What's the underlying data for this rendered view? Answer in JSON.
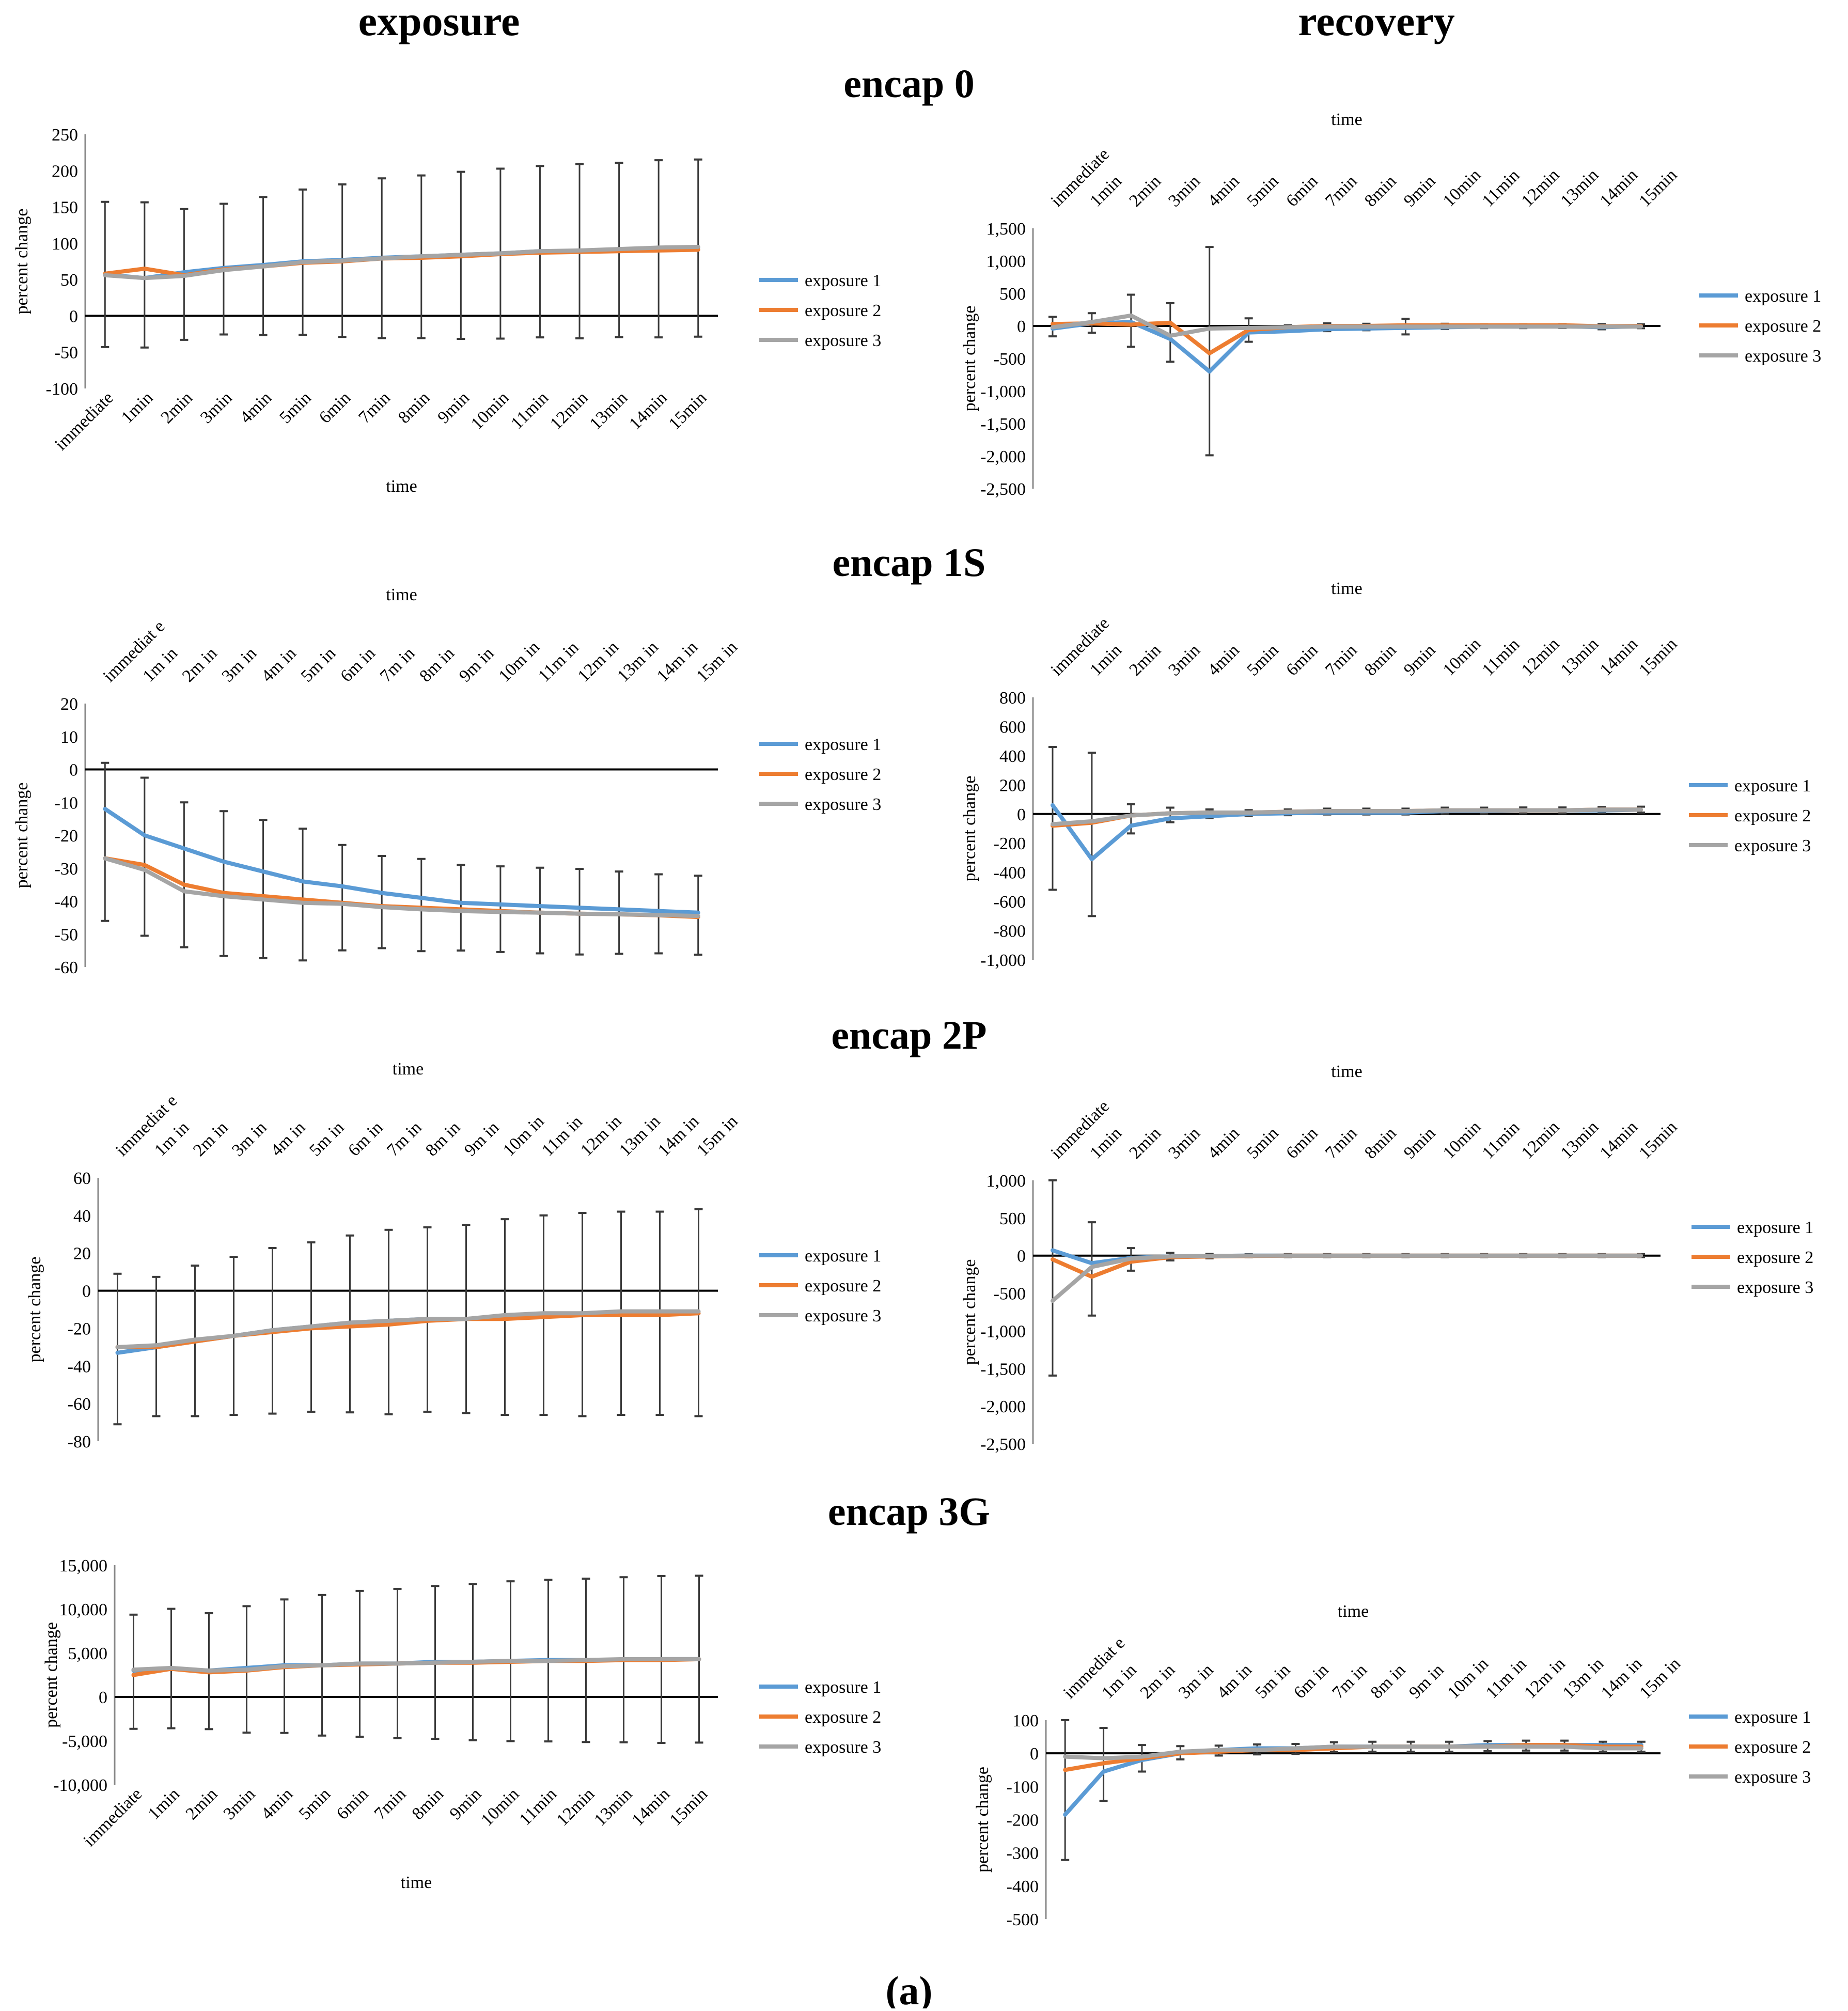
{
  "figure": {
    "column_titles": [
      "exposure",
      "recovery"
    ],
    "caption": "(a)",
    "colors": {
      "exposure 1": "#5b9bd5",
      "exposure 2": "#ed7d31",
      "exposure 3": "#a5a5a5",
      "errorbar": "#3a3a3a"
    }
  },
  "chart_data": [
    {
      "group": "encap 0",
      "panel": "exposure",
      "type": "line",
      "title": "encap 0",
      "xlabel": "time",
      "ylabel": "percent change",
      "xaxis_position": "bottom",
      "categories": [
        "immediate",
        "1min",
        "2min",
        "3min",
        "4min",
        "5min",
        "6min",
        "7min",
        "8min",
        "9min",
        "10min",
        "11min",
        "12min",
        "13min",
        "14min",
        "15min"
      ],
      "ylim": [
        -100,
        250
      ],
      "yticks": [
        "-100",
        "-50",
        "0",
        "50",
        "100",
        "150",
        "200",
        "250"
      ],
      "yticks_values": [
        -100,
        -50,
        0,
        50,
        100,
        150,
        200,
        250
      ],
      "legend": "right",
      "grid": false,
      "series": [
        {
          "name": "exposure 1",
          "values": [
            57,
            52,
            60,
            66,
            70,
            75,
            77,
            80,
            82,
            84,
            86,
            89,
            89,
            91,
            93,
            94
          ]
        },
        {
          "name": "exposure 2",
          "values": [
            58,
            65,
            56,
            64,
            68,
            73,
            75,
            79,
            80,
            82,
            85,
            87,
            88,
            89,
            90,
            91
          ]
        },
        {
          "name": "exposure 3",
          "values": [
            56,
            52,
            55,
            63,
            68,
            74,
            76,
            79,
            82,
            84,
            86,
            89,
            90,
            92,
            94,
            95
          ]
        }
      ],
      "error": [
        100,
        100,
        90,
        90,
        95,
        100,
        105,
        110,
        112,
        115,
        117,
        118,
        120,
        120,
        122,
        122
      ]
    },
    {
      "group": "encap 0",
      "panel": "recovery",
      "type": "line",
      "title": "",
      "xlabel": "time",
      "ylabel": "percent change",
      "xaxis_position": "top",
      "categories": [
        "immediate",
        "1min",
        "2min",
        "3min",
        "4min",
        "5min",
        "6min",
        "7min",
        "8min",
        "9min",
        "10min",
        "11min",
        "12min",
        "13min",
        "14min",
        "15min"
      ],
      "ylim": [
        -2500,
        1500
      ],
      "yticks": [
        "-2,500",
        "-2,000",
        "-1,500",
        "-1,000",
        "-500",
        "0",
        "500",
        "1,000",
        "1,500"
      ],
      "yticks_values": [
        -2500,
        -2000,
        -1500,
        -1000,
        -500,
        0,
        500,
        1000,
        1500
      ],
      "legend": "right",
      "grid": false,
      "series": [
        {
          "name": "exposure 1",
          "values": [
            -40,
            40,
            60,
            -200,
            -700,
            -100,
            -80,
            -50,
            -40,
            -30,
            -20,
            -10,
            -10,
            -5,
            -20,
            -5
          ]
        },
        {
          "name": "exposure 2",
          "values": [
            30,
            40,
            20,
            50,
            -420,
            -60,
            -20,
            0,
            0,
            10,
            10,
            10,
            10,
            10,
            -5,
            0
          ]
        },
        {
          "name": "exposure 3",
          "values": [
            -20,
            60,
            160,
            -150,
            -40,
            -30,
            -20,
            -10,
            -10,
            -10,
            -10,
            -10,
            -10,
            -10,
            -10,
            -10
          ]
        }
      ],
      "error": [
        150,
        150,
        400,
        450,
        1600,
        180,
        50,
        60,
        50,
        120,
        40,
        30,
        30,
        30,
        40,
        30
      ]
    },
    {
      "group": "encap 1S",
      "panel": "exposure",
      "type": "line",
      "title": "encap 1S",
      "xlabel": "time",
      "ylabel": "percent change",
      "xaxis_position": "top",
      "categories": [
        "immediat e",
        "1m in",
        "2m in",
        "3m in",
        "4m in",
        "5m in",
        "6m in",
        "7m in",
        "8m in",
        "9m in",
        "10m in",
        "11m in",
        "12m in",
        "13m in",
        "14m in",
        "15m in"
      ],
      "ylim": [
        -60,
        20
      ],
      "yticks": [
        "-60",
        "-50",
        "-40",
        "-30",
        "-20",
        "-10",
        "0",
        "10",
        "20"
      ],
      "yticks_values": [
        -60,
        -50,
        -40,
        -30,
        -20,
        -10,
        0,
        10,
        20
      ],
      "legend": "right",
      "grid": false,
      "series": [
        {
          "name": "exposure 1",
          "values": [
            -12,
            -20,
            -24,
            -28,
            -31,
            -34,
            -35.5,
            -37.5,
            -39,
            -40.5,
            -41,
            -41.5,
            -42,
            -42.5,
            -43,
            -43.5
          ]
        },
        {
          "name": "exposure 2",
          "values": [
            -27,
            -29,
            -35,
            -37.5,
            -38.5,
            -39.5,
            -40.5,
            -41.5,
            -42,
            -42.5,
            -43,
            -43.5,
            -43.8,
            -44,
            -44.3,
            -44.8
          ]
        },
        {
          "name": "exposure 3",
          "values": [
            -27,
            -30.5,
            -37,
            -38.5,
            -39.5,
            -40.5,
            -40.8,
            -41.8,
            -42.5,
            -43,
            -43.3,
            -43.5,
            -43.8,
            -44,
            -44.2,
            -44.5
          ]
        }
      ],
      "error": [
        24,
        24,
        22,
        22,
        21,
        20,
        16,
        14,
        14,
        13,
        13,
        13,
        13,
        12.5,
        12,
        12
      ]
    },
    {
      "group": "encap 1S",
      "panel": "recovery",
      "type": "line",
      "title": "",
      "xlabel": "time",
      "ylabel": "percent change",
      "xaxis_position": "top",
      "categories": [
        "immediate",
        "1min",
        "2min",
        "3min",
        "4min",
        "5min",
        "6min",
        "7min",
        "8min",
        "9min",
        "10min",
        "11min",
        "12min",
        "13min",
        "14min",
        "15min"
      ],
      "ylim": [
        -1000,
        800
      ],
      "yticks": [
        "-1,000",
        "-800",
        "-600",
        "-400",
        "-200",
        "0",
        "200",
        "400",
        "600",
        "800"
      ],
      "yticks_values": [
        -1000,
        -800,
        -600,
        -400,
        -200,
        0,
        200,
        400,
        600,
        800
      ],
      "legend": "right",
      "grid": false,
      "series": [
        {
          "name": "exposure 1",
          "values": [
            60,
            -310,
            -80,
            -30,
            -15,
            0,
            5,
            10,
            10,
            10,
            20,
            20,
            25,
            25,
            25,
            30
          ]
        },
        {
          "name": "exposure 2",
          "values": [
            -80,
            -60,
            -10,
            5,
            10,
            10,
            15,
            20,
            20,
            20,
            25,
            25,
            25,
            25,
            30,
            30
          ]
        },
        {
          "name": "exposure 3",
          "values": [
            -70,
            -50,
            -10,
            5,
            10,
            10,
            15,
            20,
            20,
            20,
            25,
            25,
            25,
            25,
            30,
            30
          ]
        }
      ],
      "error": [
        490,
        560,
        100,
        50,
        30,
        20,
        20,
        20,
        20,
        20,
        20,
        20,
        20,
        20,
        20,
        20
      ]
    },
    {
      "group": "encap 2P",
      "panel": "exposure",
      "type": "line",
      "title": "encap 2P",
      "xlabel": "time",
      "ylabel": "percent change",
      "xaxis_position": "top",
      "categories": [
        "immediat e",
        "1m in",
        "2m in",
        "3m in",
        "4m in",
        "5m in",
        "6m in",
        "7m in",
        "8m in",
        "9m in",
        "10m in",
        "11m in",
        "12m in",
        "13m in",
        "14m in",
        "15m in"
      ],
      "ylim": [
        -80,
        60
      ],
      "yticks": [
        "-80",
        "-60",
        "-40",
        "-20",
        "0",
        "20",
        "40",
        "60"
      ],
      "yticks_values": [
        -80,
        -60,
        -40,
        -20,
        0,
        20,
        40,
        60
      ],
      "legend": "right",
      "grid": false,
      "series": [
        {
          "name": "exposure 1",
          "values": [
            -33,
            -30,
            -27,
            -24,
            -21,
            -19,
            -17,
            -16,
            -15,
            -15,
            -14,
            -13,
            -13,
            -12,
            -12,
            -12
          ]
        },
        {
          "name": "exposure 2",
          "values": [
            -30,
            -30,
            -27,
            -24,
            -22,
            -20,
            -19,
            -18,
            -16,
            -15,
            -15,
            -14,
            -13,
            -13,
            -13,
            -12
          ]
        },
        {
          "name": "exposure 3",
          "values": [
            -30,
            -29,
            -26,
            -24,
            -21,
            -19,
            -17,
            -16,
            -15,
            -15,
            -13,
            -12,
            -12,
            -11,
            -11,
            -11
          ]
        }
      ],
      "error": [
        40,
        37,
        40,
        42,
        44,
        45,
        47,
        49,
        49,
        50,
        52,
        53,
        54,
        54,
        54,
        55
      ]
    },
    {
      "group": "encap 2P",
      "panel": "recovery",
      "type": "line",
      "title": "",
      "xlabel": "time",
      "ylabel": "percent change",
      "xaxis_position": "top",
      "categories": [
        "immediate",
        "1min",
        "2min",
        "3min",
        "4min",
        "5min",
        "6min",
        "7min",
        "8min",
        "9min",
        "10min",
        "11min",
        "12min",
        "13min",
        "14min",
        "15min"
      ],
      "ylim": [
        -2500,
        1000
      ],
      "yticks": [
        "-2,500",
        "-2,000",
        "-1,500",
        "-1,000",
        "-500",
        "0",
        "500",
        "1,000"
      ],
      "yticks_values": [
        -2500,
        -2000,
        -1500,
        -1000,
        -500,
        0,
        500,
        1000
      ],
      "legend": "right",
      "grid": false,
      "series": [
        {
          "name": "exposure 1",
          "values": [
            70,
            -100,
            -30,
            -10,
            -5,
            0,
            0,
            0,
            0,
            0,
            0,
            0,
            0,
            0,
            0,
            0
          ]
        },
        {
          "name": "exposure 2",
          "values": [
            -50,
            -280,
            -80,
            -20,
            -10,
            -5,
            0,
            0,
            0,
            0,
            0,
            0,
            0,
            0,
            0,
            0
          ]
        },
        {
          "name": "exposure 3",
          "values": [
            -600,
            -150,
            -40,
            -10,
            -5,
            0,
            0,
            0,
            0,
            0,
            0,
            0,
            0,
            0,
            0,
            0
          ]
        }
      ],
      "error": [
        1400,
        620,
        150,
        50,
        30,
        20,
        20,
        20,
        20,
        20,
        20,
        20,
        20,
        20,
        20,
        20
      ]
    },
    {
      "group": "encap 3G",
      "panel": "exposure",
      "type": "line",
      "title": "encap 3G",
      "xlabel": "time",
      "ylabel": "percent change",
      "xaxis_position": "bottom",
      "categories": [
        "immediate",
        "1min",
        "2min",
        "3min",
        "4min",
        "5min",
        "6min",
        "7min",
        "8min",
        "9min",
        "10min",
        "11min",
        "12min",
        "13min",
        "14min",
        "15min"
      ],
      "ylim": [
        -10000,
        15000
      ],
      "yticks": [
        "-10,000",
        "-5,000",
        "0",
        "5,000",
        "10,000",
        "15,000"
      ],
      "yticks_values": [
        -10000,
        -5000,
        0,
        5000,
        10000,
        15000
      ],
      "legend": "right",
      "grid": false,
      "series": [
        {
          "name": "exposure 1",
          "values": [
            3000,
            3200,
            3000,
            3300,
            3600,
            3600,
            3800,
            3800,
            4000,
            4000,
            4100,
            4200,
            4200,
            4200,
            4300,
            4300
          ]
        },
        {
          "name": "exposure 2",
          "values": [
            2500,
            3200,
            2800,
            3000,
            3400,
            3600,
            3700,
            3800,
            3900,
            3900,
            4000,
            4100,
            4100,
            4200,
            4200,
            4300
          ]
        },
        {
          "name": "exposure 3",
          "values": [
            3100,
            3300,
            3000,
            3100,
            3500,
            3600,
            3800,
            3800,
            3900,
            4000,
            4100,
            4100,
            4200,
            4300,
            4300,
            4300
          ]
        }
      ],
      "error": [
        6500,
        6800,
        6600,
        7200,
        7600,
        8000,
        8300,
        8500,
        8700,
        8900,
        9100,
        9200,
        9300,
        9400,
        9500,
        9500
      ]
    },
    {
      "group": "encap 3G",
      "panel": "recovery",
      "type": "line",
      "title": "",
      "xlabel": "time",
      "ylabel": "percent change",
      "xaxis_position": "top",
      "categories": [
        "immediat e",
        "1m in",
        "2m in",
        "3m in",
        "4m in",
        "5m in",
        "6m in",
        "7m in",
        "8m in",
        "9m in",
        "10m in",
        "11m in",
        "12m in",
        "13m in",
        "14m in",
        "15m in"
      ],
      "ylim": [
        -500,
        100
      ],
      "yticks": [
        "-500",
        "-400",
        "-300",
        "-200",
        "-100",
        "0",
        "100"
      ],
      "yticks_values": [
        -500,
        -400,
        -300,
        -200,
        -100,
        0,
        100
      ],
      "legend": "right",
      "grid": false,
      "series": [
        {
          "name": "exposure 1",
          "values": [
            -185,
            -55,
            -20,
            0,
            10,
            15,
            15,
            20,
            20,
            20,
            20,
            25,
            25,
            25,
            25,
            25
          ]
        },
        {
          "name": "exposure 2",
          "values": [
            -50,
            -30,
            -15,
            0,
            5,
            10,
            10,
            15,
            20,
            20,
            20,
            20,
            25,
            25,
            20,
            20
          ]
        },
        {
          "name": "exposure 3",
          "values": [
            -10,
            -15,
            -10,
            5,
            10,
            10,
            15,
            20,
            20,
            20,
            20,
            20,
            20,
            20,
            15,
            15
          ]
        }
      ],
      "error": [
        240,
        110,
        40,
        20,
        15,
        15,
        15,
        15,
        15,
        15,
        15,
        15,
        15,
        15,
        15,
        15
      ]
    }
  ]
}
